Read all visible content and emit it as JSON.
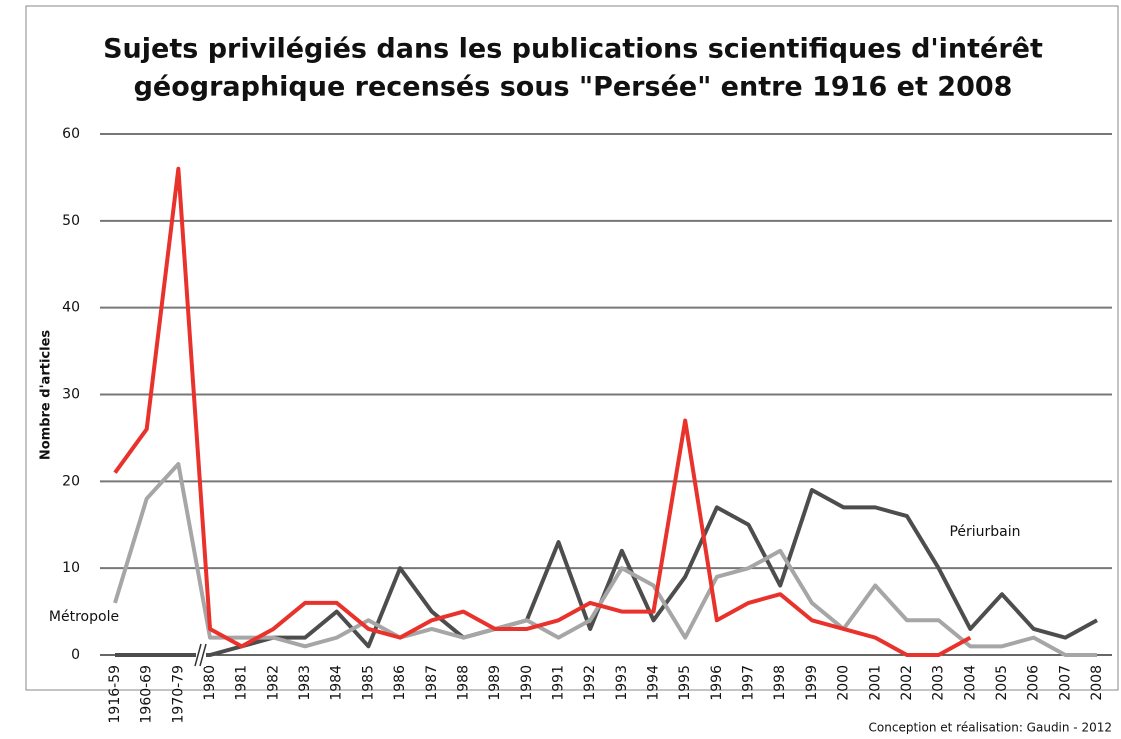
{
  "chart_data": {
    "type": "line",
    "title": "Sujets privilégiés dans les publications scientifiques d'intérêt",
    "subtitle": "géographique recensés sous \"Persée\" entre 1916 et 2008",
    "y_label": "Nombre d'articles",
    "credit": "Conception et réalisation: Gaudin - 2012",
    "categories": [
      "1916-59",
      "1960-69",
      "1970-79",
      "1980",
      "1981",
      "1982",
      "1983",
      "1984",
      "1985",
      "1986",
      "1987",
      "1988",
      "1989",
      "1990",
      "1991",
      "1992",
      "1993",
      "1994",
      "1995",
      "1996",
      "1997",
      "1998",
      "1999",
      "2000",
      "2001",
      "2002",
      "2003",
      "2004",
      "2005",
      "2006",
      "2007",
      "2008"
    ],
    "series": [
      {
        "name": "Périurbain",
        "color": "#4d4d4d",
        "values": [
          0,
          0,
          0,
          0,
          1,
          2,
          2,
          5,
          1,
          10,
          5,
          2,
          3,
          4,
          13,
          3,
          12,
          4,
          9,
          17,
          15,
          8,
          19,
          17,
          17,
          16,
          10,
          3,
          7,
          3,
          2,
          4
        ]
      },
      {
        "name": "Métropole",
        "color": "#a6a6a6",
        "values": [
          6,
          18,
          22,
          2,
          2,
          2,
          1,
          2,
          4,
          2,
          3,
          2,
          3,
          4,
          2,
          4,
          10,
          8,
          2,
          9,
          10,
          12,
          6,
          3,
          8,
          4,
          4,
          1,
          1,
          2,
          0,
          0
        ]
      },
      {
        "color": "#e8322b",
        "values": [
          21,
          26,
          56,
          3,
          1,
          3,
          6,
          6,
          3,
          2,
          4,
          5,
          3,
          3,
          4,
          6,
          5,
          5,
          27,
          4,
          6,
          7,
          4,
          3,
          2,
          0,
          0,
          2,
          null,
          null,
          null,
          null
        ]
      }
    ],
    "ylim": [
      0,
      60
    ],
    "yticks": [
      0,
      10,
      20,
      30,
      40,
      50,
      60
    ],
    "grid": true
  }
}
